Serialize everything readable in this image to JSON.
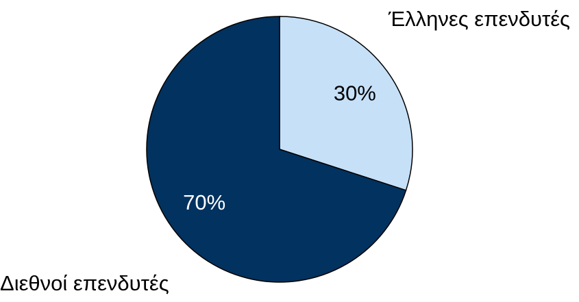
{
  "chart_data": {
    "type": "pie",
    "categories": [
      "Έλληνες επενδυτές",
      "Διεθνοί επενδυτές"
    ],
    "values": [
      30,
      70
    ],
    "value_labels": [
      "30%",
      "70%"
    ],
    "colors": [
      "#c6e0f8",
      "#02325f"
    ],
    "value_label_colors": [
      "#000000",
      "#ffffff"
    ]
  }
}
